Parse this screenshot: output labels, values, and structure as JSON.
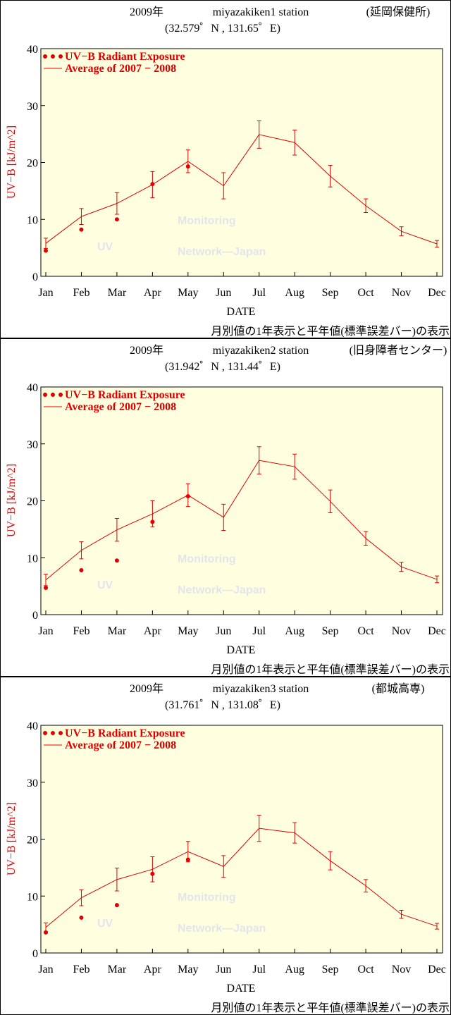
{
  "chart_data": [
    {
      "type": "line",
      "title": "2009年",
      "station": "miyazakiken1 station",
      "location": "(延岡保健所)",
      "coords": "(32.579゜N , 131.65゜E)",
      "watermark": [
        "UV",
        "Monitoring",
        "Network—Japan"
      ],
      "footer": "月別値の1年表示と平年値(標準誤差バー)の表示",
      "xlabel": "DATE",
      "ylabel": "UV−B [kJ/m^2]",
      "ylim": [
        0,
        40
      ],
      "yticks": [
        0,
        10,
        20,
        30,
        40
      ],
      "categories": [
        "Jan",
        "Feb",
        "Mar",
        "Apr",
        "May",
        "Jun",
        "Jul",
        "Aug",
        "Sep",
        "Oct",
        "Nov",
        "Dec"
      ],
      "series": [
        {
          "name": "UV−B Radiant Exposure",
          "color": "#e00000",
          "values": [
            4.5,
            8.2,
            10.0,
            16.2,
            19.3,
            null,
            null,
            null,
            null,
            null,
            null,
            null
          ]
        },
        {
          "name": "Average of 2007 − 2008",
          "color": "#e00000",
          "values": [
            5.8,
            10.5,
            12.8,
            16.1,
            20.2,
            15.9,
            24.9,
            23.5,
            17.6,
            12.4,
            7.9,
            5.7
          ],
          "errors": [
            0.9,
            1.4,
            1.9,
            2.3,
            2.0,
            2.3,
            2.4,
            2.2,
            1.9,
            1.2,
            0.8,
            0.6
          ]
        }
      ]
    },
    {
      "type": "line",
      "title": "2009年",
      "station": "miyazakiken2 station",
      "location": "(旧身障者センター)",
      "coords": "(31.942゜N , 131.44゜E)",
      "watermark": [
        "UV",
        "Monitoring",
        "Network—Japan"
      ],
      "footer": "月別値の1年表示と平年値(標準誤差バー)の表示",
      "xlabel": "DATE",
      "ylabel": "UV−B [kJ/m^2]",
      "ylim": [
        0,
        40
      ],
      "yticks": [
        0,
        10,
        20,
        30,
        40
      ],
      "categories": [
        "Jan",
        "Feb",
        "Mar",
        "Apr",
        "May",
        "Jun",
        "Jul",
        "Aug",
        "Sep",
        "Oct",
        "Nov",
        "Dec"
      ],
      "series": [
        {
          "name": "UV−B Radiant Exposure",
          "color": "#e00000",
          "values": [
            4.7,
            7.8,
            9.5,
            16.3,
            20.8,
            null,
            null,
            null,
            null,
            null,
            null,
            null
          ]
        },
        {
          "name": "Average of 2007 − 2008",
          "color": "#e00000",
          "values": [
            6.1,
            11.3,
            14.9,
            17.7,
            21.0,
            17.1,
            27.1,
            26.0,
            19.9,
            13.4,
            8.4,
            6.2
          ],
          "errors": [
            1.0,
            1.5,
            2.0,
            2.3,
            2.0,
            2.3,
            2.4,
            2.2,
            2.0,
            1.2,
            0.8,
            0.6
          ]
        }
      ]
    },
    {
      "type": "line",
      "title": "2009年",
      "station": "miyazakiken3 station",
      "location": "(都城高専)",
      "coords": "(31.761゜N , 131.08゜E)",
      "watermark": [
        "UV",
        "Monitoring",
        "Network—Japan"
      ],
      "footer": "月別値の1年表示と平年値(標準誤差バー)の表示",
      "xlabel": "DATE",
      "ylabel": "UV−B [kJ/m^2]",
      "ylim": [
        0,
        40
      ],
      "yticks": [
        0,
        10,
        20,
        30,
        40
      ],
      "categories": [
        "Jan",
        "Feb",
        "Mar",
        "Apr",
        "May",
        "Jun",
        "Jul",
        "Aug",
        "Sep",
        "Oct",
        "Nov",
        "Dec"
      ],
      "series": [
        {
          "name": "UV−B Radiant Exposure",
          "color": "#e00000",
          "values": [
            3.6,
            6.2,
            8.4,
            13.9,
            16.4,
            null,
            null,
            null,
            null,
            null,
            null,
            null
          ]
        },
        {
          "name": "Average of 2007 − 2008",
          "color": "#e00000",
          "values": [
            4.5,
            9.7,
            12.9,
            14.7,
            17.8,
            15.2,
            21.9,
            21.1,
            16.2,
            11.8,
            6.8,
            4.7
          ],
          "errors": [
            0.8,
            1.4,
            2.0,
            2.2,
            1.8,
            1.9,
            2.3,
            1.8,
            1.6,
            1.1,
            0.7,
            0.5
          ]
        }
      ]
    }
  ]
}
